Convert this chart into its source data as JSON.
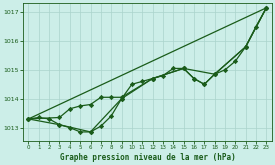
{
  "title": "Graphe pression niveau de la mer (hPa)",
  "bg_color": "#cceee8",
  "line_color": "#1a5c1a",
  "grid_color": "#aad4cc",
  "ylim": [
    1012.55,
    1017.3
  ],
  "xlim": [
    -0.5,
    23.5
  ],
  "yticks": [
    1013,
    1014,
    1015,
    1016,
    1017
  ],
  "xticks": [
    0,
    1,
    2,
    3,
    4,
    5,
    6,
    7,
    8,
    9,
    10,
    11,
    12,
    13,
    14,
    15,
    16,
    17,
    18,
    19,
    20,
    21,
    22,
    23
  ],
  "series": [
    {
      "x": [
        0,
        1,
        2,
        3,
        4,
        5,
        6,
        7,
        8,
        9,
        10,
        11,
        12,
        13,
        14,
        15,
        16,
        17,
        18,
        19,
        20,
        21,
        22,
        23
      ],
      "y": [
        1013.3,
        1013.35,
        1013.3,
        1013.1,
        1013.0,
        1012.85,
        1012.85,
        1013.05,
        1013.4,
        1014.0,
        1014.5,
        1014.6,
        1014.7,
        1014.8,
        1015.05,
        1015.05,
        1014.7,
        1014.5,
        1014.85,
        1015.0,
        1015.3,
        1015.8,
        1016.5,
        1017.15
      ],
      "marker": true,
      "linewidth": 0.9
    },
    {
      "x": [
        0,
        3,
        6,
        9,
        12,
        15,
        18,
        21,
        23
      ],
      "y": [
        1013.3,
        1013.1,
        1012.85,
        1014.0,
        1014.7,
        1015.05,
        1014.85,
        1015.8,
        1017.15
      ],
      "marker": true,
      "linewidth": 0.9
    },
    {
      "x": [
        0,
        3,
        4,
        5,
        6,
        7,
        8,
        9,
        12,
        15,
        16,
        17,
        18,
        21,
        23
      ],
      "y": [
        1013.3,
        1013.35,
        1013.65,
        1013.75,
        1013.8,
        1014.05,
        1014.05,
        1014.05,
        1014.7,
        1015.05,
        1014.7,
        1014.5,
        1014.85,
        1015.8,
        1017.15
      ],
      "marker": true,
      "linewidth": 0.9
    },
    {
      "x": [
        0,
        23
      ],
      "y": [
        1013.3,
        1017.15
      ],
      "marker": false,
      "linewidth": 0.9
    }
  ]
}
